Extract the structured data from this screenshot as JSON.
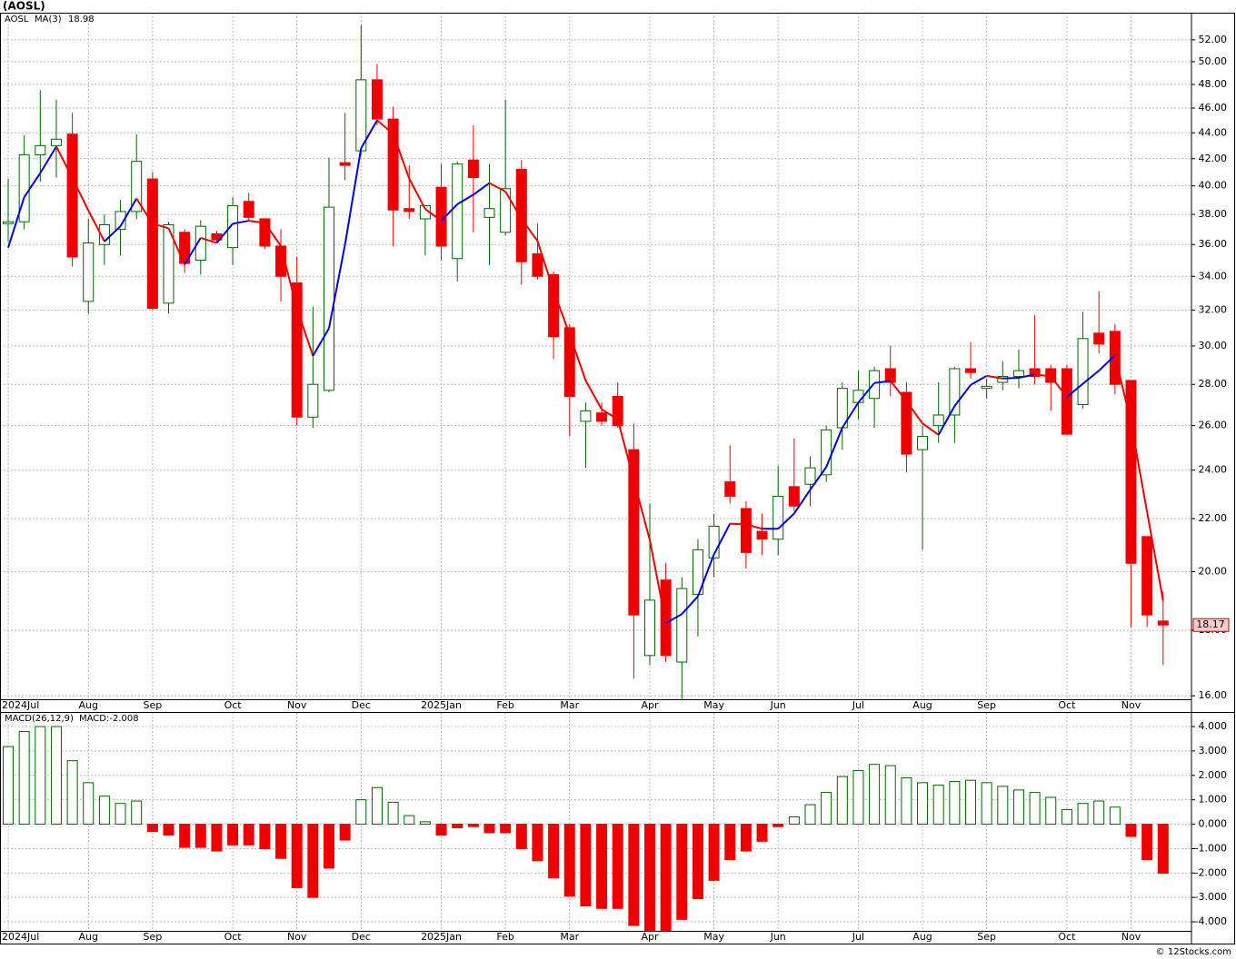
{
  "title": "(AOSL)",
  "footer": "© 12Stocks.com",
  "chart_data": [
    {
      "type": "candlestick",
      "log_scale": true,
      "grid": true,
      "categories": [
        "2024Jul",
        null,
        null,
        null,
        null,
        "Aug",
        null,
        null,
        null,
        "Sep",
        null,
        null,
        null,
        null,
        "Oct",
        null,
        null,
        null,
        "Nov",
        null,
        null,
        null,
        "Dec",
        null,
        null,
        null,
        null,
        "2025Jan",
        null,
        null,
        null,
        "Feb",
        null,
        null,
        null,
        "Mar",
        null,
        null,
        null,
        null,
        "Apr",
        null,
        null,
        null,
        "May",
        null,
        null,
        null,
        "Jun",
        null,
        null,
        null,
        null,
        "Jul",
        null,
        null,
        null,
        "Aug",
        null,
        null,
        null,
        "Sep",
        null,
        null,
        null,
        null,
        "Oct",
        null,
        null,
        null,
        "Nov",
        null,
        null
      ],
      "ylim": [
        15.9,
        54.6
      ],
      "yticks": [
        {
          "value": 16,
          "label": "16.00"
        },
        {
          "value": 18,
          "label": "18.00"
        },
        {
          "value": 20,
          "label": "20.00"
        },
        {
          "value": 22,
          "label": "22.00"
        },
        {
          "value": 24,
          "label": "24.00"
        },
        {
          "value": 26,
          "label": "26.00"
        },
        {
          "value": 28,
          "label": "28.00"
        },
        {
          "value": 30,
          "label": "30.00"
        },
        {
          "value": 32,
          "label": "32.00"
        },
        {
          "value": 34,
          "label": "34.00"
        },
        {
          "value": 36,
          "label": "36.00"
        },
        {
          "value": 38,
          "label": "38.00"
        },
        {
          "value": 40,
          "label": "40.00"
        },
        {
          "value": 42,
          "label": "42.00"
        },
        {
          "value": 44,
          "label": "44.00"
        },
        {
          "value": 46,
          "label": "46.00"
        },
        {
          "value": 48,
          "label": "48.00"
        },
        {
          "value": 50,
          "label": "50.00"
        },
        {
          "value": 52,
          "label": "52.00"
        }
      ],
      "series": [
        {
          "name": "AOSL",
          "color": "#006600",
          "up_color": "#006600",
          "down_color": "#ee0000",
          "open": [
            37.5,
            37.5,
            42.3,
            43.0,
            43.9,
            32.5,
            36.0,
            37.0,
            38.2,
            40.5,
            32.4,
            36.8,
            35.0,
            36.7,
            35.8,
            38.9,
            37.7,
            35.9,
            33.6,
            26.4,
            27.7,
            41.7,
            42.6,
            48.4,
            45.1,
            38.4,
            37.7,
            39.9,
            35.1,
            41.9,
            37.8,
            36.8,
            41.2,
            35.4,
            34.1,
            31.0,
            26.2,
            26.6,
            27.4,
            24.9,
            17.2,
            19.7,
            17.0,
            19.2,
            20.5,
            23.5,
            22.4,
            21.5,
            21.2,
            23.3,
            23.4,
            23.8,
            25.9,
            27.1,
            27.3,
            28.8,
            27.6,
            24.9,
            26.0,
            26.5,
            28.8,
            27.8,
            28.1,
            28.4,
            28.8,
            28.8,
            28.8,
            27.0,
            30.7,
            30.8,
            28.2,
            21.3,
            18.3
          ],
          "high": [
            40.5,
            43.8,
            47.5,
            46.7,
            45.6,
            37.7,
            38.0,
            39.0,
            43.9,
            41.0,
            37.5,
            37.0,
            37.6,
            36.9,
            39.2,
            39.5,
            37.7,
            37.0,
            35.2,
            32.2,
            42.1,
            45.6,
            53.4,
            49.8,
            46.1,
            41.5,
            38.6,
            41.6,
            41.8,
            44.6,
            41.6,
            46.7,
            41.9,
            37.4,
            34.3,
            31.2,
            27.1,
            27.1,
            28.1,
            26.1,
            22.6,
            20.3,
            19.8,
            21.2,
            22.2,
            25.1,
            22.7,
            22.2,
            24.2,
            25.4,
            24.6,
            26.0,
            28.1,
            28.7,
            28.9,
            30.0,
            28.1,
            26.0,
            28.1,
            28.9,
            30.2,
            28.3,
            29.2,
            29.8,
            31.7,
            29.0,
            29.0,
            31.9,
            33.1,
            31.2,
            28.2,
            21.3,
            19.3
          ],
          "low": [
            36.2,
            37.0,
            40.3,
            40.6,
            34.6,
            31.8,
            34.7,
            35.3,
            37.7,
            32.0,
            31.8,
            34.2,
            34.1,
            36.1,
            34.7,
            37.6,
            35.7,
            32.5,
            26.0,
            25.9,
            27.6,
            40.4,
            42.3,
            44.6,
            35.9,
            37.7,
            35.3,
            35.0,
            33.7,
            36.8,
            34.7,
            36.6,
            33.5,
            33.8,
            29.3,
            25.5,
            24.1,
            26.0,
            25.9,
            16.5,
            16.9,
            17.0,
            15.9,
            17.8,
            19.8,
            22.6,
            20.1,
            20.6,
            20.6,
            22.3,
            22.5,
            23.5,
            24.9,
            26.3,
            25.9,
            27.4,
            23.9,
            20.8,
            25.2,
            25.2,
            28.3,
            27.3,
            27.7,
            27.8,
            28.0,
            26.7,
            25.6,
            26.8,
            29.6,
            27.5,
            18.1,
            18.1,
            16.9
          ],
          "close": [
            37.5,
            42.3,
            43.0,
            43.5,
            35.2,
            36.1,
            37.3,
            38.2,
            41.8,
            32.1,
            37.3,
            34.8,
            37.2,
            36.3,
            38.6,
            37.8,
            35.9,
            34.0,
            26.4,
            28.0,
            38.5,
            41.5,
            48.4,
            45.1,
            38.3,
            38.2,
            38.6,
            35.9,
            41.6,
            40.6,
            38.4,
            39.8,
            34.9,
            34.0,
            30.5,
            27.4,
            26.7,
            26.2,
            26.0,
            18.5,
            19.0,
            17.2,
            19.4,
            20.8,
            21.7,
            22.9,
            20.7,
            21.2,
            22.9,
            22.5,
            24.1,
            25.8,
            27.8,
            27.7,
            28.7,
            28.1,
            24.7,
            25.5,
            26.5,
            28.8,
            28.6,
            27.9,
            28.4,
            28.7,
            28.4,
            28.1,
            25.6,
            30.4,
            30.1,
            28.0,
            20.3,
            18.5,
            18.17
          ]
        },
        {
          "name": "MA(3)",
          "type": "line",
          "color": "#0000dd",
          "down_color": "#ee0000",
          "values": [
            35.8,
            39.2,
            40.93,
            42.93,
            40.57,
            38.27,
            36.2,
            37.2,
            39.1,
            37.37,
            37.07,
            34.73,
            36.43,
            36.1,
            37.37,
            37.57,
            37.43,
            35.9,
            32.1,
            29.47,
            30.97,
            36,
            42.8,
            45,
            43.93,
            40.53,
            38.37,
            37.57,
            38.7,
            39.37,
            40.2,
            39.6,
            37.7,
            36.23,
            33.13,
            30.63,
            28.2,
            26.77,
            26.3,
            23.57,
            21.17,
            18.23,
            18.53,
            19.13,
            20.63,
            21.8,
            21.77,
            21.6,
            21.6,
            22.2,
            23.17,
            24.13,
            25.9,
            27.1,
            28.07,
            28.17,
            27.17,
            26.1,
            25.57,
            26.93,
            27.97,
            28.43,
            28.3,
            28.33,
            28.5,
            28.4,
            27.37,
            28.03,
            28.7,
            29.5,
            26.13,
            22.27,
            18.98
          ]
        }
      ]
    },
    {
      "type": "bar",
      "title": "MACD(26,12,9)",
      "legend_text": "MACD:-2.008",
      "legend_color": "#0000dd",
      "grid": true,
      "up_color": "#006600",
      "down_color": "#ee0000",
      "categories": [
        "2024Jul",
        null,
        null,
        null,
        null,
        "Aug",
        null,
        null,
        null,
        "Sep",
        null,
        null,
        null,
        null,
        "Oct",
        null,
        null,
        null,
        "Nov",
        null,
        null,
        null,
        "Dec",
        null,
        null,
        null,
        null,
        "2025Jan",
        null,
        null,
        null,
        "Feb",
        null,
        null,
        null,
        "Mar",
        null,
        null,
        null,
        null,
        "Apr",
        null,
        null,
        null,
        "May",
        null,
        null,
        null,
        "Jun",
        null,
        null,
        null,
        null,
        "Jul",
        null,
        null,
        null,
        "Aug",
        null,
        null,
        null,
        "Sep",
        null,
        null,
        null,
        null,
        "Oct",
        null,
        null,
        null,
        "Nov",
        null,
        null
      ],
      "ylim": [
        -4.37,
        4.56
      ],
      "yticks": [
        {
          "value": -4,
          "label": "-4.000"
        },
        {
          "value": -3,
          "label": "-3.000"
        },
        {
          "value": -2,
          "label": "-2.000"
        },
        {
          "value": -1,
          "label": "-1.000"
        },
        {
          "value": 0,
          "label": "0.000"
        },
        {
          "value": 1,
          "label": "1.000"
        },
        {
          "value": 2,
          "label": "2.000"
        },
        {
          "value": 3,
          "label": "3.000"
        },
        {
          "value": 4,
          "label": "4.000"
        }
      ],
      "values": [
        3.18,
        3.8,
        4.0,
        4.0,
        2.6,
        1.7,
        1.15,
        0.85,
        0.95,
        -0.3,
        -0.45,
        -0.95,
        -0.95,
        -1.1,
        -0.85,
        -0.85,
        -1.0,
        -1.4,
        -2.6,
        -3.0,
        -1.8,
        -0.65,
        1.0,
        1.5,
        0.9,
        0.35,
        0.1,
        -0.45,
        -0.15,
        -0.1,
        -0.35,
        -0.35,
        -1.0,
        -1.5,
        -2.2,
        -2.95,
        -3.35,
        -3.45,
        -3.45,
        -4.15,
        -4.37,
        -4.4,
        -3.9,
        -3.05,
        -2.3,
        -1.45,
        -1.1,
        -0.7,
        -0.1,
        0.3,
        0.8,
        1.3,
        1.95,
        2.2,
        2.45,
        2.4,
        1.9,
        1.7,
        1.6,
        1.75,
        1.8,
        1.7,
        1.55,
        1.4,
        1.3,
        1.1,
        0.6,
        0.85,
        0.95,
        0.7,
        -0.5,
        -1.45,
        -2.008
      ]
    }
  ]
}
